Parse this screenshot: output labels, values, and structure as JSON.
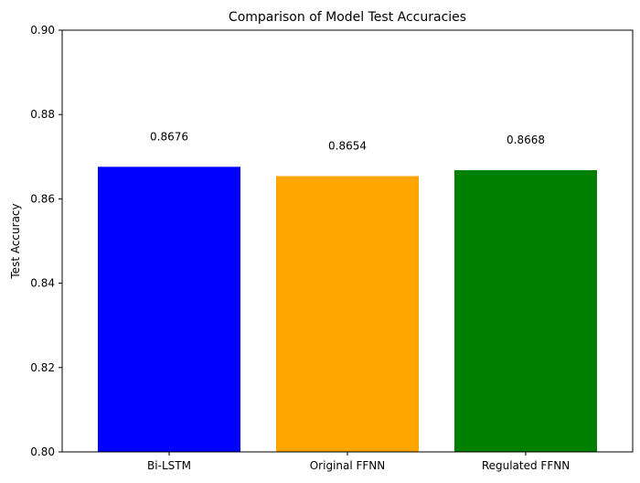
{
  "chart_data": {
    "type": "bar",
    "title": "Comparison of Model Test Accuracies",
    "xlabel": "",
    "ylabel": "Test Accuracy",
    "categories": [
      "Bi-LSTM",
      "Original FFNN",
      "Regulated FFNN"
    ],
    "values": [
      0.8676,
      0.8654,
      0.8668
    ],
    "value_labels": [
      "0.8676",
      "0.8654",
      "0.8668"
    ],
    "colors": [
      "#0000ff",
      "#ffa500",
      "#008000"
    ],
    "ylim": [
      0.8,
      0.9
    ],
    "yticks": [
      0.8,
      0.82,
      0.84,
      0.86,
      0.88,
      0.9
    ],
    "ytick_labels": [
      "0.80",
      "0.82",
      "0.84",
      "0.86",
      "0.88",
      "0.90"
    ],
    "grid": false,
    "legend": "none"
  }
}
